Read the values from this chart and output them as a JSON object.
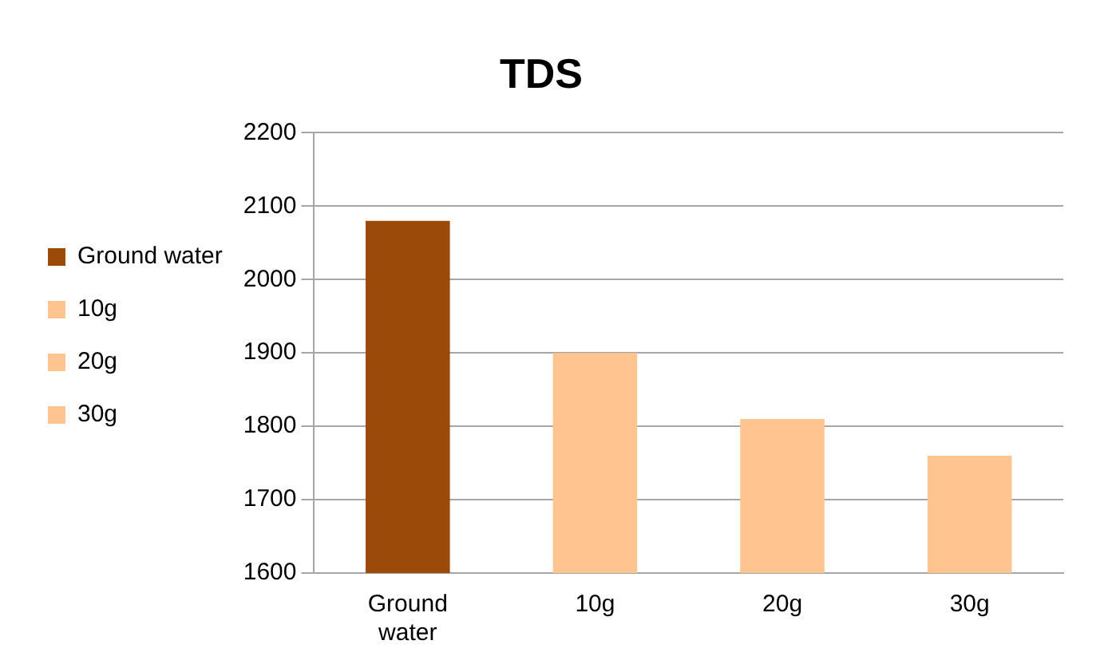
{
  "chart_data": {
    "type": "bar",
    "title": "TDS",
    "categories": [
      "Ground water",
      "10g",
      "20g",
      "30g"
    ],
    "series": [
      {
        "name": "Ground water",
        "color": "#9c4a0a",
        "values": [
          2080,
          null,
          null,
          null
        ]
      },
      {
        "name": "10g",
        "color": "#ffc48f",
        "values": [
          null,
          1900,
          null,
          null
        ]
      },
      {
        "name": "20g",
        "color": "#ffc48f",
        "values": [
          null,
          null,
          1810,
          null
        ]
      },
      {
        "name": "30g",
        "color": "#ffc48f",
        "values": [
          null,
          null,
          null,
          1760
        ]
      }
    ],
    "stacked": true,
    "ylim": [
      1600,
      2200
    ],
    "yticks": [
      1600,
      1700,
      1800,
      1900,
      2000,
      2100,
      2200
    ],
    "grid": "y",
    "legend": "left"
  }
}
